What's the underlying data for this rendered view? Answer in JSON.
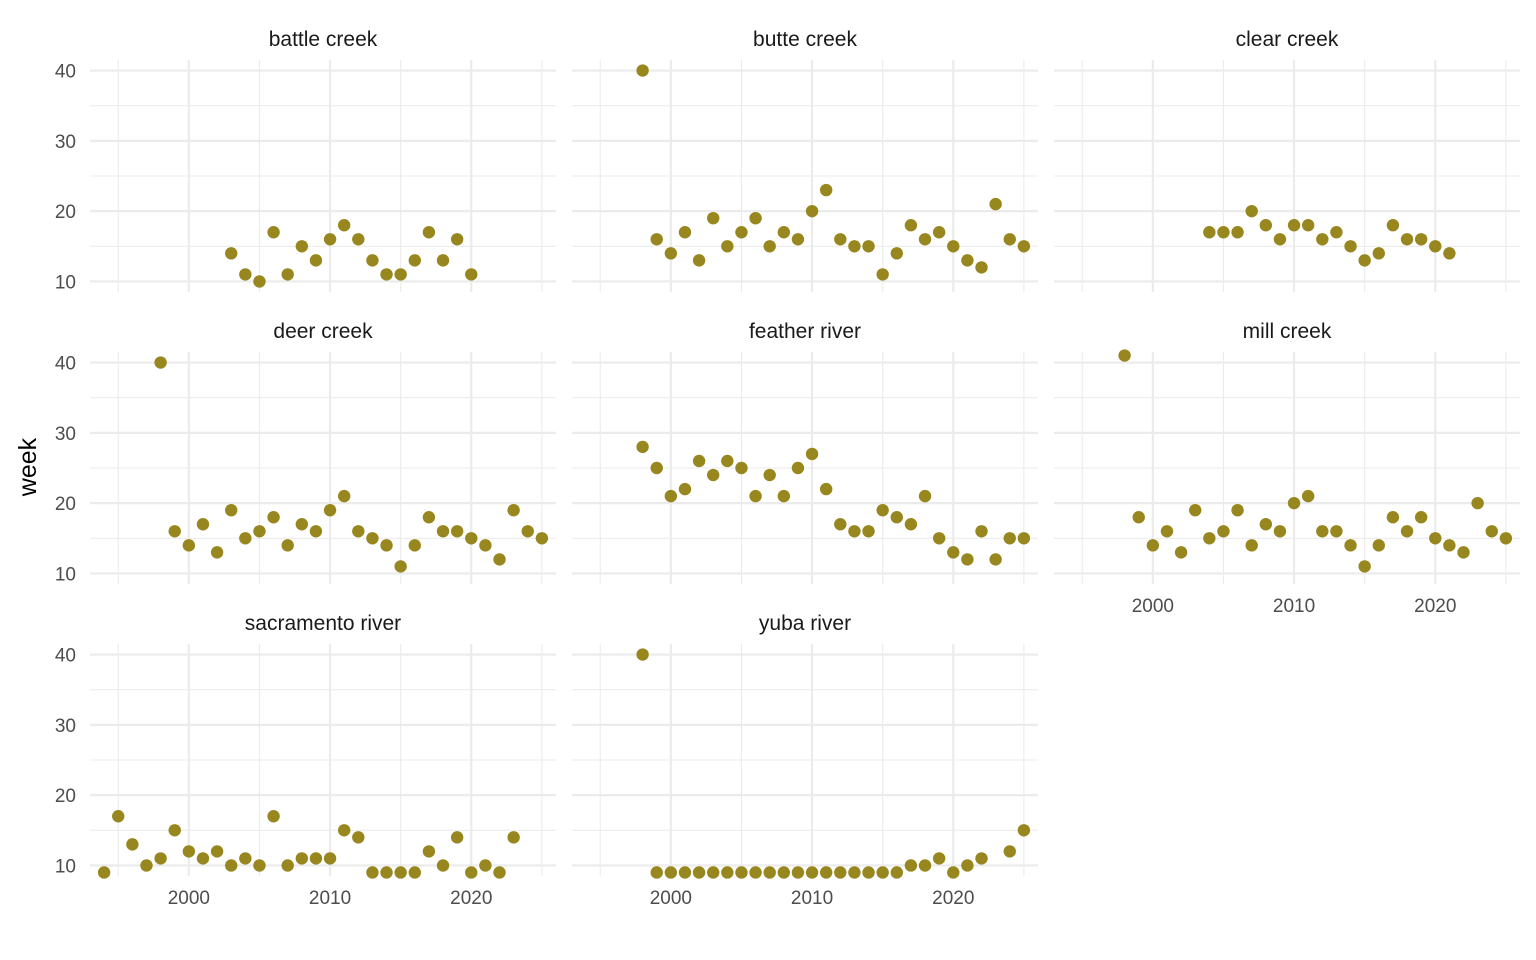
{
  "chart_data": {
    "type": "scatter",
    "layout": "facet_wrap",
    "ylabel": "week",
    "xlabel": "",
    "xlim": [
      1993,
      2026
    ],
    "ylim": [
      8.5,
      41.5
    ],
    "x_ticks": [
      2000,
      2010,
      2020
    ],
    "y_ticks": [
      10,
      20,
      30,
      40
    ],
    "grid": true,
    "point_color": "#98871F",
    "panels": [
      {
        "name": "battle creek",
        "x": [
          2003,
          2004,
          2005,
          2006,
          2007,
          2008,
          2009,
          2010,
          2011,
          2012,
          2013,
          2014,
          2015,
          2016,
          2017,
          2018,
          2019,
          2020
        ],
        "y": [
          14,
          11,
          10,
          17,
          11,
          15,
          13,
          16,
          18,
          16,
          13,
          11,
          11,
          13,
          17,
          13,
          16,
          11
        ]
      },
      {
        "name": "butte creek",
        "x": [
          1998,
          1999,
          2000,
          2001,
          2002,
          2003,
          2004,
          2005,
          2006,
          2007,
          2008,
          2009,
          2010,
          2011,
          2012,
          2013,
          2014,
          2015,
          2016,
          2017,
          2018,
          2019,
          2020,
          2021,
          2022,
          2023,
          2024,
          2025
        ],
        "y": [
          40,
          16,
          14,
          17,
          13,
          19,
          15,
          17,
          19,
          15,
          17,
          16,
          20,
          23,
          16,
          15,
          15,
          11,
          14,
          18,
          16,
          17,
          15,
          13,
          12,
          21,
          16,
          15
        ]
      },
      {
        "name": "clear creek",
        "x": [
          2004,
          2005,
          2006,
          2007,
          2008,
          2009,
          2010,
          2011,
          2012,
          2013,
          2014,
          2015,
          2016,
          2017,
          2018,
          2019,
          2020,
          2021
        ],
        "y": [
          17,
          17,
          17,
          20,
          18,
          16,
          18,
          18,
          16,
          17,
          15,
          13,
          14,
          18,
          16,
          16,
          15,
          14
        ]
      },
      {
        "name": "deer creek",
        "x": [
          1998,
          1999,
          2000,
          2001,
          2002,
          2003,
          2004,
          2005,
          2006,
          2007,
          2008,
          2009,
          2010,
          2011,
          2012,
          2013,
          2014,
          2015,
          2016,
          2017,
          2018,
          2019,
          2020,
          2021,
          2022,
          2023,
          2024,
          2025
        ],
        "y": [
          40,
          16,
          14,
          17,
          13,
          19,
          15,
          16,
          18,
          14,
          17,
          16,
          19,
          21,
          16,
          15,
          14,
          11,
          14,
          18,
          16,
          16,
          15,
          14,
          12,
          19,
          16,
          15
        ]
      },
      {
        "name": "feather river",
        "x": [
          1998,
          1999,
          2000,
          2001,
          2002,
          2003,
          2004,
          2005,
          2006,
          2007,
          2008,
          2009,
          2010,
          2011,
          2012,
          2013,
          2014,
          2015,
          2016,
          2017,
          2018,
          2019,
          2020,
          2021,
          2022,
          2023,
          2024,
          2025
        ],
        "y": [
          28,
          25,
          21,
          22,
          26,
          24,
          26,
          25,
          21,
          24,
          21,
          25,
          27,
          22,
          17,
          16,
          16,
          19,
          18,
          17,
          21,
          15,
          13,
          12,
          16,
          12,
          15,
          15
        ]
      },
      {
        "name": "mill creek",
        "x": [
          1998,
          1999,
          2000,
          2001,
          2002,
          2003,
          2004,
          2005,
          2006,
          2007,
          2008,
          2009,
          2010,
          2011,
          2012,
          2013,
          2014,
          2015,
          2016,
          2017,
          2018,
          2019,
          2020,
          2021,
          2022,
          2023,
          2024,
          2025
        ],
        "y": [
          41,
          18,
          14,
          16,
          13,
          19,
          15,
          16,
          19,
          14,
          17,
          16,
          20,
          21,
          16,
          16,
          14,
          11,
          14,
          18,
          16,
          18,
          15,
          14,
          13,
          20,
          16,
          15
        ]
      },
      {
        "name": "sacramento river",
        "x": [
          1994,
          1995,
          1996,
          1997,
          1998,
          1999,
          2000,
          2001,
          2002,
          2003,
          2004,
          2005,
          2006,
          2007,
          2008,
          2009,
          2010,
          2011,
          2012,
          2013,
          2014,
          2015,
          2016,
          2017,
          2018,
          2019,
          2020,
          2021,
          2022,
          2023
        ],
        "y": [
          9,
          17,
          13,
          10,
          11,
          15,
          12,
          11,
          12,
          10,
          11,
          10,
          17,
          10,
          11,
          11,
          11,
          15,
          14,
          9,
          9,
          9,
          9,
          12,
          10,
          14,
          9,
          10,
          9,
          14
        ]
      },
      {
        "name": "yuba river",
        "x": [
          1998,
          1999,
          2000,
          2001,
          2002,
          2003,
          2004,
          2005,
          2006,
          2007,
          2008,
          2009,
          2010,
          2011,
          2012,
          2013,
          2014,
          2015,
          2016,
          2017,
          2018,
          2019,
          2020,
          2021,
          2022,
          2024,
          2025
        ],
        "y": [
          40,
          9,
          9,
          9,
          9,
          9,
          9,
          9,
          9,
          9,
          9,
          9,
          9,
          9,
          9,
          9,
          9,
          9,
          9,
          10,
          10,
          11,
          9,
          10,
          11,
          12,
          15
        ]
      }
    ]
  }
}
